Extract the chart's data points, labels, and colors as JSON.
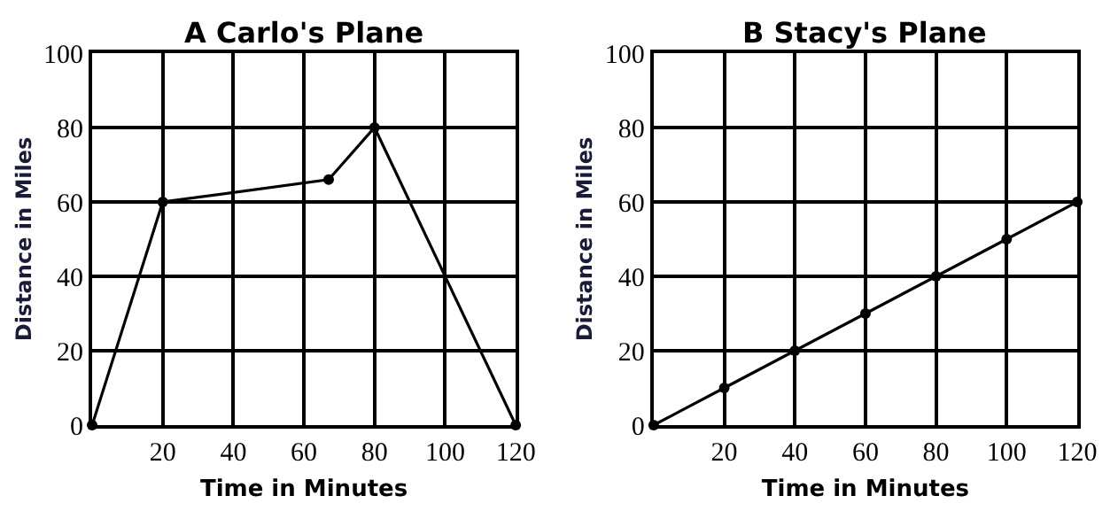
{
  "chart_data": [
    {
      "type": "line",
      "title": "A Carlo's Plane",
      "xlabel": "Time in Minutes",
      "ylabel": "Distance in Miles",
      "x": [
        0,
        20,
        67,
        80,
        120
      ],
      "series": [
        {
          "color": "#000000",
          "values": [
            0,
            60,
            66,
            80,
            0
          ]
        }
      ],
      "xlim": [
        0,
        120
      ],
      "xticks": [
        {
          "value": 0,
          "label": null
        },
        20,
        40,
        60,
        80,
        100,
        120
      ],
      "ylim": [
        0,
        100
      ],
      "yticks": [
        0,
        20,
        40,
        60,
        80,
        100
      ],
      "grid": true,
      "marker": "circle",
      "line_style": "solid"
    },
    {
      "type": "line",
      "title": "B Stacy's Plane",
      "xlabel": "Time in Minutes",
      "ylabel": "Distance in Miles",
      "x": [
        0,
        20,
        40,
        60,
        80,
        100,
        120
      ],
      "series": [
        {
          "color": "#000000",
          "values": [
            0,
            10,
            20,
            30,
            40,
            50,
            60
          ]
        }
      ],
      "xlim": [
        0,
        120
      ],
      "xticks": [
        {
          "value": 0,
          "label": null
        },
        20,
        40,
        60,
        80,
        100,
        120
      ],
      "ylim": [
        0,
        100
      ],
      "yticks": [
        0,
        20,
        40,
        60,
        80,
        100
      ],
      "grid": true,
      "marker": "circle",
      "line_style": "solid"
    }
  ]
}
